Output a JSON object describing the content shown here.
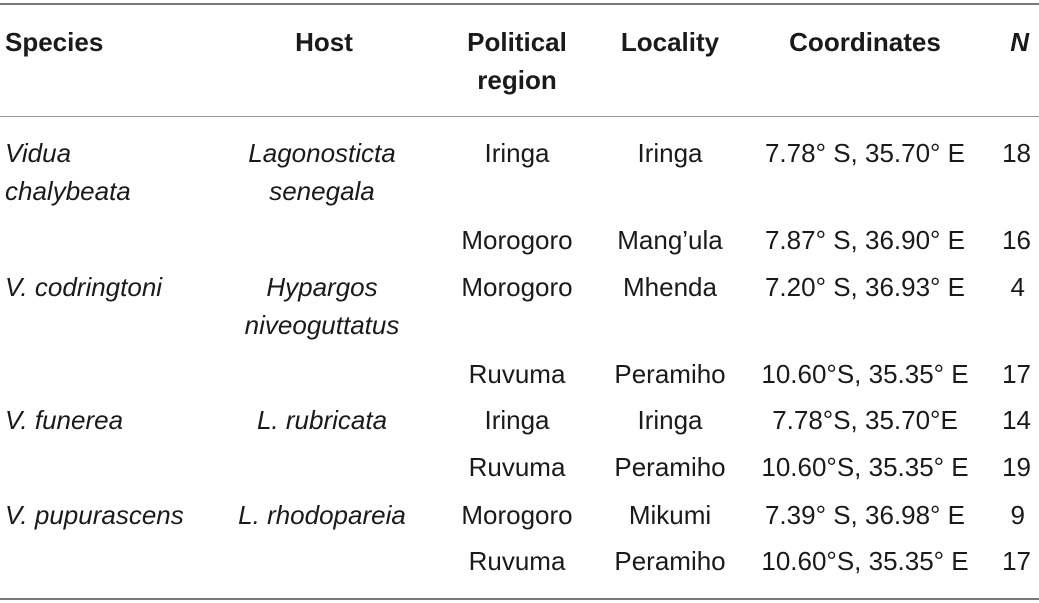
{
  "table": {
    "headers": {
      "species": "Species",
      "host": "Host",
      "region_line1": "Political",
      "region_line2": "region",
      "locality": "Locality",
      "coordinates": "Coordinates",
      "n": "N"
    },
    "rows": [
      {
        "species_l1": "Vidua",
        "species_l2": "chalybeata",
        "host_l1": "Lagonosticta",
        "host_l2": "senegala",
        "region": "Iringa",
        "locality": "Iringa",
        "coordinates": "7.78° S, 35.70° E",
        "n": "18"
      },
      {
        "species_l1": "",
        "species_l2": "",
        "host_l1": "",
        "host_l2": "",
        "region": "Morogoro",
        "locality": "Mang’ula",
        "coordinates": "7.87° S, 36.90° E",
        "n": "16"
      },
      {
        "species_l1": "V. codringtoni",
        "species_l2": "",
        "host_l1": "Hypargos",
        "host_l2": "niveoguttatus",
        "region": "Morogoro",
        "locality": "Mhenda",
        "coordinates": "7.20° S, 36.93° E",
        "n": "4"
      },
      {
        "species_l1": "",
        "species_l2": "",
        "host_l1": "",
        "host_l2": "",
        "region": "Ruvuma",
        "locality": "Peramiho",
        "coordinates": "10.60°S, 35.35° E",
        "n": "17"
      },
      {
        "species_l1": "V. funerea",
        "species_l2": "",
        "host_l1": "L. rubricata",
        "host_l2": "",
        "region": "Iringa",
        "locality": "Iringa",
        "coordinates": "7.78°S, 35.70°E",
        "n": "14"
      },
      {
        "species_l1": "",
        "species_l2": "",
        "host_l1": "",
        "host_l2": "",
        "region": "Ruvuma",
        "locality": "Peramiho",
        "coordinates": "10.60°S, 35.35° E",
        "n": "19"
      },
      {
        "species_l1": "V. pupurascens",
        "species_l2": "",
        "host_l1": "L. rhodopareia",
        "host_l2": "",
        "region": "Morogoro",
        "locality": "Mikumi",
        "coordinates": "7.39° S, 36.98° E",
        "n": "9"
      },
      {
        "species_l1": "",
        "species_l2": "",
        "host_l1": "",
        "host_l2": "",
        "region": "Ruvuma",
        "locality": "Peramiho",
        "coordinates": "10.60°S, 35.35° E",
        "n": "17"
      }
    ]
  }
}
